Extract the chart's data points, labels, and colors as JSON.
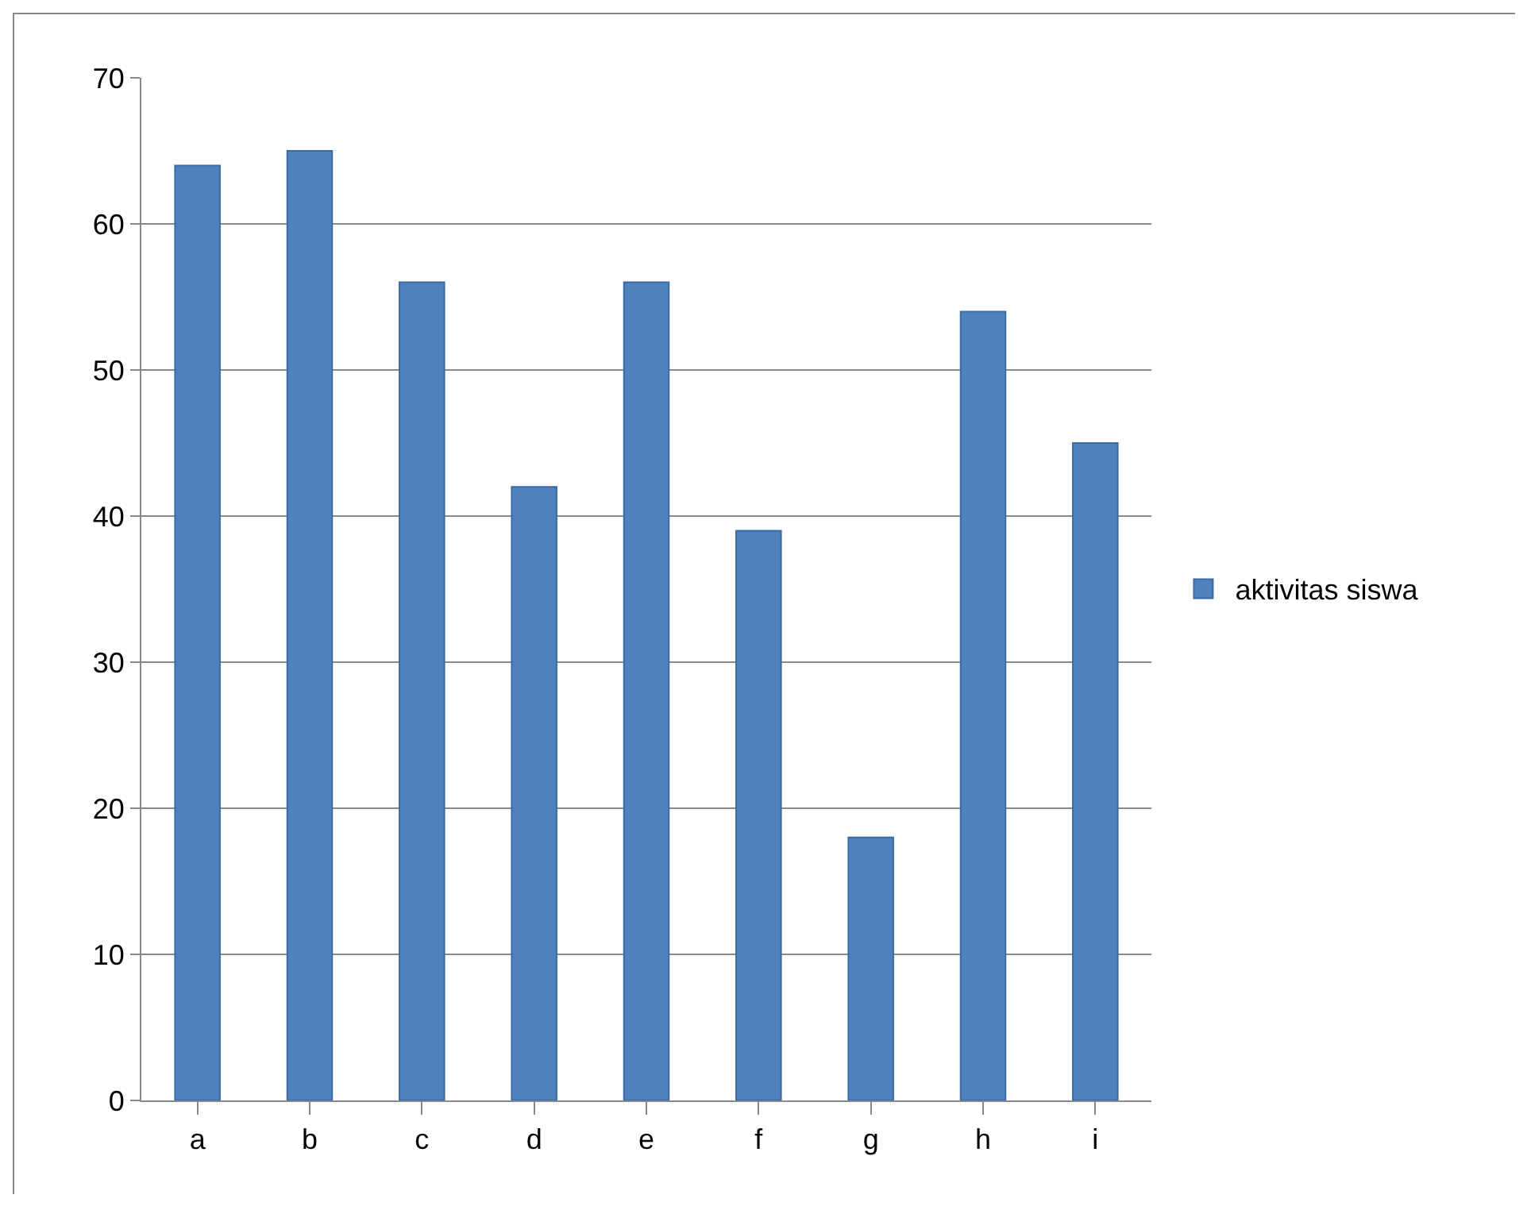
{
  "chart_data": {
    "type": "bar",
    "categories": [
      "a",
      "b",
      "c",
      "d",
      "e",
      "f",
      "g",
      "h",
      "i"
    ],
    "series": [
      {
        "name": "aktivitas siswa",
        "color": "#4f81bd",
        "values": [
          64,
          65,
          56,
          42,
          56,
          39,
          18,
          54,
          45
        ]
      }
    ],
    "ylim": [
      0,
      70
    ],
    "yticks": [
      0,
      10,
      20,
      30,
      40,
      50,
      60,
      70
    ],
    "grid": "y",
    "legend": "right"
  }
}
